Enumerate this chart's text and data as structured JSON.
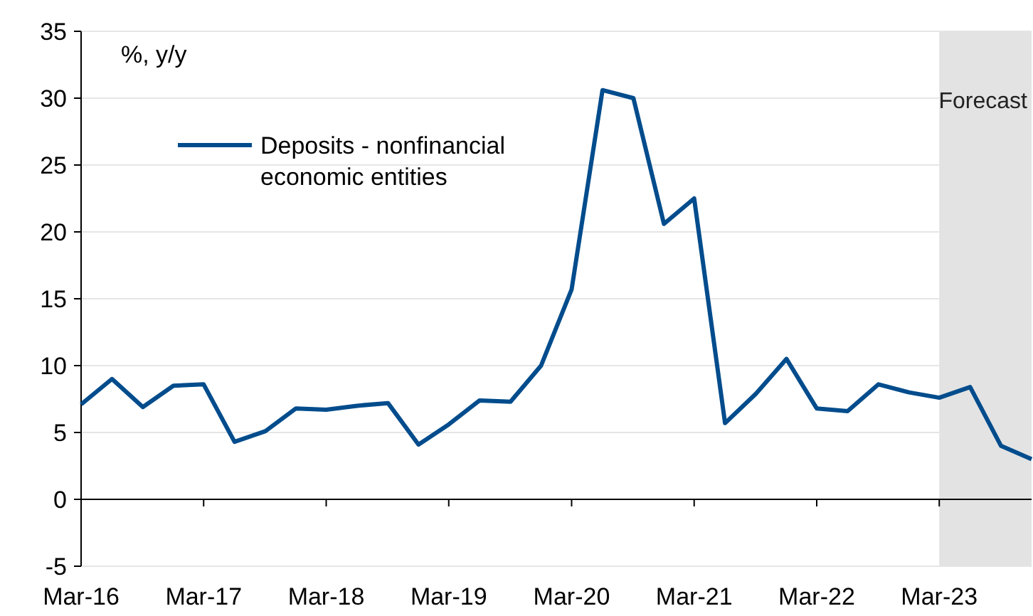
{
  "chart_data": {
    "type": "line",
    "ylabel": "%, y/y",
    "legend": "top left",
    "grid": "y",
    "marker": "none",
    "line_style": "solid",
    "x": [
      "2016-03",
      "2016-06",
      "2016-09",
      "2016-12",
      "2017-03",
      "2017-06",
      "2017-09",
      "2017-12",
      "2018-03",
      "2018-06",
      "2018-09",
      "2018-12",
      "2019-03",
      "2019-06",
      "2019-09",
      "2019-12",
      "2020-03",
      "2020-06",
      "2020-09",
      "2020-12",
      "2021-03",
      "2021-06",
      "2021-09",
      "2021-12",
      "2022-03",
      "2022-06",
      "2022-09",
      "2022-12",
      "2023-03",
      "2023-06",
      "2023-09",
      "2023-12"
    ],
    "series": [
      {
        "name": "Deposits - nonfinancial economic entities",
        "color": "#004c8c",
        "values": [
          7.1,
          9.0,
          6.9,
          8.5,
          8.6,
          4.3,
          5.1,
          6.8,
          6.7,
          7.0,
          7.2,
          4.1,
          5.6,
          7.4,
          7.3,
          10.0,
          15.7,
          30.6,
          30.0,
          20.6,
          22.5,
          5.7,
          7.9,
          10.5,
          6.8,
          6.6,
          8.6,
          8.0,
          7.6,
          8.4,
          4.0,
          3.0
        ]
      }
    ],
    "xlim": [
      "2016-03",
      "2023-12"
    ],
    "xticks": [
      {
        "value": "2016-03",
        "label": "Mar-16"
      },
      {
        "value": "2017-03",
        "label": "Mar-17"
      },
      {
        "value": "2018-03",
        "label": "Mar-18"
      },
      {
        "value": "2019-03",
        "label": "Mar-19"
      },
      {
        "value": "2020-03",
        "label": "Mar-20"
      },
      {
        "value": "2021-03",
        "label": "Mar-21"
      },
      {
        "value": "2022-03",
        "label": "Mar-22"
      },
      {
        "value": "2023-03",
        "label": "Mar-23"
      }
    ],
    "ylim": [
      -5,
      35
    ],
    "yticks": [
      -5,
      0,
      5,
      10,
      15,
      20,
      25,
      30,
      35
    ],
    "bands": [
      {
        "axis": "x",
        "from": "2023-03",
        "to": "2023-12",
        "label": "Forecast",
        "color": "#e3e3e3"
      }
    ]
  }
}
